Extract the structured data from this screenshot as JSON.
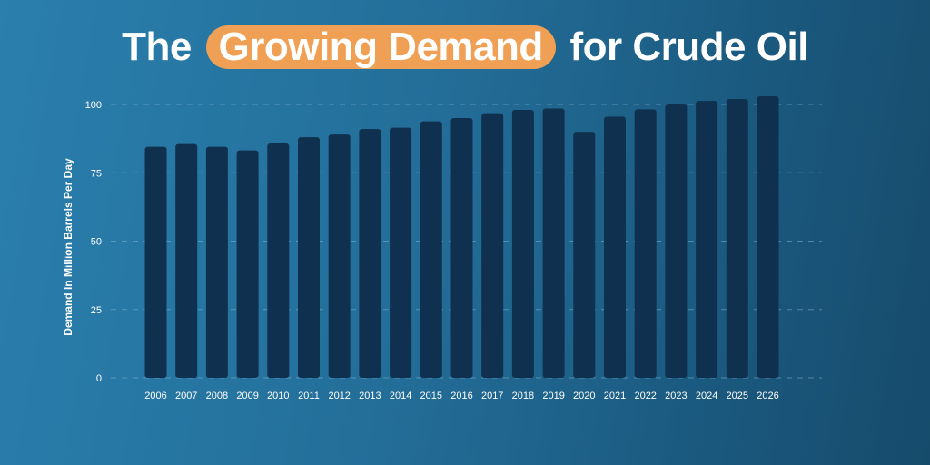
{
  "title": {
    "prefix": "The",
    "highlight": "Growing Demand",
    "suffix": "for Crude Oil"
  },
  "colors": {
    "bar": "#10304f",
    "grid": "#7fb0cf",
    "text": "#ffffff",
    "highlight": "#f0a054"
  },
  "chart_data": {
    "type": "bar",
    "title": "The Growing Demand for Crude Oil",
    "xlabel": "",
    "ylabel": "Demand In Million Barrels Per Day",
    "ylim": [
      0,
      100
    ],
    "yticks": [
      0,
      25,
      50,
      75,
      100
    ],
    "grid": true,
    "categories": [
      "2006",
      "2007",
      "2008",
      "2009",
      "2010",
      "2011",
      "2012",
      "2013",
      "2014",
      "2015",
      "2016",
      "2017",
      "2018",
      "2019",
      "2020",
      "2021",
      "2022",
      "2023",
      "2024",
      "2025",
      "2026"
    ],
    "values": [
      84.5,
      85.5,
      84.5,
      83.2,
      85.7,
      88.0,
      89.0,
      91.0,
      91.5,
      93.8,
      95.0,
      96.8,
      98.0,
      98.5,
      90.0,
      95.5,
      98.2,
      100.0,
      101.3,
      102.0,
      103.0
    ]
  }
}
